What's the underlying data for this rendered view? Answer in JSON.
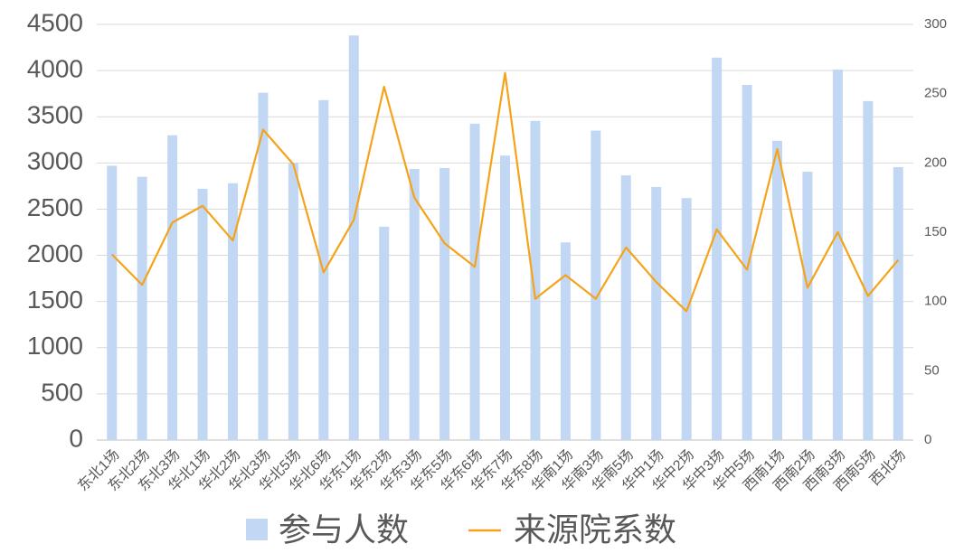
{
  "chart_data": {
    "type": "bar-line",
    "categories": [
      "东北1场",
      "东北2场",
      "东北3场",
      "华北1场",
      "华北2场",
      "华北3场",
      "华北5场",
      "华北6场",
      "华东1场",
      "华东2场",
      "华东3场",
      "华东5场",
      "华东6场",
      "华东7场",
      "华东8场",
      "华南1场",
      "华南3场",
      "华南5场",
      "华中1场",
      "华中2场",
      "华中3场",
      "华中5场",
      "西南1场",
      "西南2场",
      "西南3场",
      "西南5场",
      "西北场"
    ],
    "series": [
      {
        "name": "参与人数",
        "type": "bar",
        "color": "#c2d7f3",
        "values": [
          2970,
          2850,
          3300,
          2720,
          2780,
          3760,
          3000,
          3680,
          4380,
          2310,
          2935,
          2945,
          3425,
          3080,
          3455,
          2140,
          3350,
          2865,
          2740,
          2620,
          4140,
          3845,
          3240,
          2905,
          4010,
          3670,
          2955
        ]
      },
      {
        "name": "来源院系数",
        "type": "line",
        "axis": "y2",
        "color": "#f5a31a",
        "values": [
          134,
          112,
          157,
          169,
          144,
          224,
          199,
          121,
          159,
          255,
          175,
          142,
          125,
          265,
          102,
          119,
          102,
          139,
          114,
          93,
          152,
          123,
          210,
          110,
          150,
          104,
          130
        ]
      }
    ],
    "ylim": [
      0,
      4500
    ],
    "yticks": [
      0,
      500,
      1000,
      1500,
      2000,
      2500,
      3000,
      3500,
      4000,
      4500
    ],
    "y2lim": [
      0,
      300
    ],
    "y2ticks": [
      0,
      50,
      100,
      150,
      200,
      250,
      300
    ],
    "grid": true,
    "legend": "bottom"
  }
}
